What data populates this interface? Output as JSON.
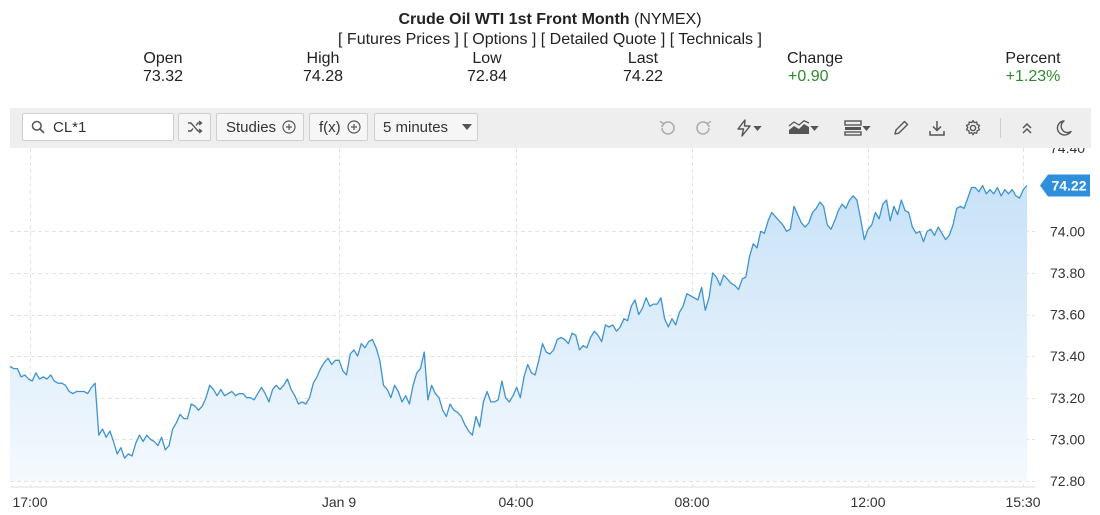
{
  "header": {
    "title_bold": "Crude Oil WTI 1st Front Month",
    "title_suffix": " (NYMEX)",
    "links": [
      "[ Futures Prices ]",
      "[ Options ]",
      "[ Detailed Quote ]",
      "[ Technicals ]"
    ]
  },
  "quote": {
    "open_label": "Open",
    "open": "73.32",
    "high_label": "High",
    "high": "74.28",
    "low_label": "Low",
    "low": "72.84",
    "last_label": "Last",
    "last": "74.22",
    "change_label": "Change",
    "change": "+0.90",
    "percent_label": "Percent",
    "percent": "+1.23%"
  },
  "toolbar": {
    "symbol": "CL*1",
    "studies_label": "Studies",
    "fx_label": "f(x)",
    "interval_label": "5 minutes"
  },
  "colors": {
    "line": "#3d93d1",
    "fill_top": "#c8e2f8",
    "fill_bottom": "#f4f9fe",
    "price_tag": "#2f8fdc",
    "positive": "#2e8b2e",
    "grid": "#e3e3e3"
  },
  "chart_data": {
    "type": "area",
    "ylim": [
      72.8,
      74.4
    ],
    "y_ticks": [
      "74.40",
      "74.00",
      "73.80",
      "73.60",
      "73.40",
      "73.20",
      "73.00",
      "72.80"
    ],
    "x_ticks": [
      "17:00",
      "Jan 9",
      "04:00",
      "08:00",
      "12:00",
      "15:30"
    ],
    "grid": true,
    "last_price_label": "74.22",
    "series": [
      {
        "values": [
          73.35,
          73.34,
          73.34,
          73.3,
          73.31,
          73.29,
          73.28,
          73.32,
          73.29,
          73.3,
          73.29,
          73.31,
          73.28,
          73.27,
          73.27,
          73.26,
          73.23,
          73.22,
          73.23,
          73.23,
          73.23,
          73.22,
          73.25,
          73.27,
          73.02,
          73.05,
          73.01,
          73.04,
          72.99,
          72.93,
          72.96,
          72.91,
          72.93,
          72.92,
          72.98,
          73.02,
          72.99,
          73.02,
          73.0,
          72.99,
          72.97,
          73.01,
          72.95,
          72.97,
          73.05,
          73.08,
          73.12,
          73.1,
          73.1,
          73.17,
          73.16,
          73.14,
          73.16,
          73.2,
          73.26,
          73.24,
          73.21,
          73.24,
          73.21,
          73.22,
          73.23,
          73.21,
          73.22,
          73.22,
          73.2,
          73.2,
          73.19,
          73.22,
          73.25,
          73.22,
          73.18,
          73.24,
          73.26,
          73.24,
          73.26,
          73.29,
          73.24,
          73.21,
          73.17,
          73.18,
          73.17,
          73.2,
          73.27,
          73.3,
          73.34,
          73.37,
          73.39,
          73.36,
          73.38,
          73.38,
          73.33,
          73.31,
          73.41,
          73.43,
          73.4,
          73.46,
          73.44,
          73.47,
          73.48,
          73.44,
          73.38,
          73.26,
          73.24,
          73.2,
          73.26,
          73.23,
          73.18,
          73.21,
          73.17,
          73.26,
          73.32,
          73.34,
          73.42,
          73.19,
          73.26,
          73.22,
          73.2,
          73.14,
          73.11,
          73.17,
          73.14,
          73.13,
          73.11,
          73.07,
          73.04,
          73.02,
          73.11,
          73.06,
          73.18,
          73.23,
          73.18,
          73.18,
          73.19,
          73.28,
          73.2,
          73.18,
          73.21,
          73.25,
          73.2,
          73.3,
          73.36,
          73.32,
          73.31,
          73.38,
          73.46,
          73.42,
          73.41,
          73.43,
          73.48,
          73.49,
          73.48,
          73.46,
          73.51,
          73.5,
          73.43,
          73.45,
          73.44,
          73.49,
          73.52,
          73.5,
          73.47,
          73.55,
          73.54,
          73.55,
          73.52,
          73.54,
          73.58,
          73.57,
          73.64,
          73.67,
          73.6,
          73.63,
          73.68,
          73.64,
          73.65,
          73.65,
          73.68,
          73.58,
          73.54,
          73.58,
          73.55,
          73.61,
          73.64,
          73.7,
          73.69,
          73.68,
          73.67,
          73.73,
          73.62,
          73.68,
          73.8,
          73.78,
          73.74,
          73.79,
          73.77,
          73.75,
          73.74,
          73.72,
          73.77,
          73.78,
          73.88,
          73.94,
          73.92,
          74.0,
          73.99,
          74.05,
          74.09,
          74.07,
          74.05,
          74.03,
          74.0,
          74.01,
          74.12,
          74.08,
          74.04,
          74.02,
          74.04,
          74.09,
          74.11,
          74.14,
          74.12,
          74.03,
          74.01,
          74.05,
          74.1,
          74.13,
          74.11,
          74.15,
          74.17,
          74.15,
          74.06,
          73.96,
          74.01,
          74.03,
          74.09,
          74.06,
          74.13,
          74.15,
          74.05,
          74.12,
          74.08,
          74.15,
          74.1,
          74.09,
          74.02,
          73.99,
          74.0,
          73.95,
          74.0,
          74.01,
          73.98,
          74.02,
          73.99,
          73.96,
          73.98,
          74.03,
          74.11,
          74.12,
          74.11,
          74.16,
          74.21,
          74.21,
          74.19,
          74.22,
          74.18,
          74.2,
          74.18,
          74.21,
          74.17,
          74.2,
          74.18,
          74.2,
          74.17,
          74.16,
          74.2,
          74.22
        ]
      }
    ]
  }
}
